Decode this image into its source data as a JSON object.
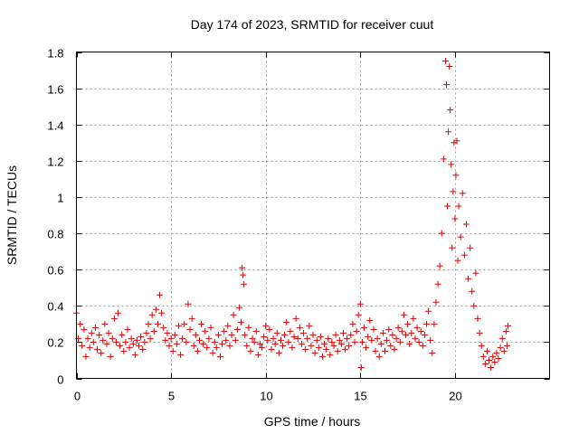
{
  "chart_data": {
    "type": "scatter",
    "title": "Day 174 of 2023, SRMTID for receiver cuut",
    "xlabel": "GPS time / hours",
    "ylabel": "SRMTID / TECUs",
    "xlim": [
      0,
      25
    ],
    "ylim": [
      0,
      1.8
    ],
    "xticks": [
      0,
      5,
      10,
      15,
      20
    ],
    "xtick_labels": [
      "0",
      "5",
      "10",
      "15",
      "20"
    ],
    "yticks": [
      0,
      0.2,
      0.4,
      0.6,
      0.8,
      1,
      1.2,
      1.4,
      1.6,
      1.8
    ],
    "ytick_labels": [
      "0",
      "0.2",
      "0.4",
      "0.6",
      "0.8",
      "1",
      "1.2",
      "1.4",
      "1.6",
      "1.8"
    ],
    "grid": true,
    "marker": "+",
    "series": [
      {
        "name": "SRMTID",
        "color": "#e00000",
        "points": [
          [
            0.0,
            0.36
          ],
          [
            0.1,
            0.22
          ],
          [
            0.2,
            0.3
          ],
          [
            0.3,
            0.18
          ],
          [
            0.4,
            0.27
          ],
          [
            0.5,
            0.12
          ],
          [
            0.6,
            0.22
          ],
          [
            0.7,
            0.17
          ],
          [
            0.8,
            0.25
          ],
          [
            0.9,
            0.2
          ],
          [
            1.0,
            0.28
          ],
          [
            1.1,
            0.16
          ],
          [
            1.2,
            0.24
          ],
          [
            1.3,
            0.14
          ],
          [
            1.4,
            0.21
          ],
          [
            1.5,
            0.3
          ],
          [
            1.6,
            0.19
          ],
          [
            1.7,
            0.25
          ],
          [
            1.8,
            0.12
          ],
          [
            1.9,
            0.22
          ],
          [
            2.0,
            0.33
          ],
          [
            2.1,
            0.2
          ],
          [
            2.2,
            0.36
          ],
          [
            2.3,
            0.18
          ],
          [
            2.4,
            0.24
          ],
          [
            2.5,
            0.15
          ],
          [
            2.6,
            0.2
          ],
          [
            2.7,
            0.27
          ],
          [
            2.8,
            0.17
          ],
          [
            2.9,
            0.22
          ],
          [
            3.0,
            0.19
          ],
          [
            3.1,
            0.13
          ],
          [
            3.2,
            0.21
          ],
          [
            3.3,
            0.18
          ],
          [
            3.4,
            0.23
          ],
          [
            3.5,
            0.16
          ],
          [
            3.6,
            0.2
          ],
          [
            3.7,
            0.25
          ],
          [
            3.8,
            0.3
          ],
          [
            3.9,
            0.22
          ],
          [
            4.0,
            0.35
          ],
          [
            4.1,
            0.26
          ],
          [
            4.2,
            0.38
          ],
          [
            4.3,
            0.3
          ],
          [
            4.4,
            0.46
          ],
          [
            4.5,
            0.36
          ],
          [
            4.6,
            0.28
          ],
          [
            4.7,
            0.21
          ],
          [
            4.8,
            0.25
          ],
          [
            4.9,
            0.18
          ],
          [
            5.0,
            0.22
          ],
          [
            5.1,
            0.15
          ],
          [
            5.2,
            0.24
          ],
          [
            5.3,
            0.19
          ],
          [
            5.4,
            0.29
          ],
          [
            5.5,
            0.13
          ],
          [
            5.6,
            0.22
          ],
          [
            5.7,
            0.3
          ],
          [
            5.8,
            0.2
          ],
          [
            5.9,
            0.41
          ],
          [
            6.0,
            0.27
          ],
          [
            6.1,
            0.33
          ],
          [
            6.2,
            0.18
          ],
          [
            6.3,
            0.24
          ],
          [
            6.4,
            0.15
          ],
          [
            6.5,
            0.21
          ],
          [
            6.6,
            0.3
          ],
          [
            6.7,
            0.19
          ],
          [
            6.8,
            0.26
          ],
          [
            6.9,
            0.17
          ],
          [
            7.0,
            0.22
          ],
          [
            7.1,
            0.28
          ],
          [
            7.2,
            0.14
          ],
          [
            7.3,
            0.2
          ],
          [
            7.4,
            0.17
          ],
          [
            7.5,
            0.24
          ],
          [
            7.6,
            0.12
          ],
          [
            7.7,
            0.19
          ],
          [
            7.8,
            0.26
          ],
          [
            7.9,
            0.21
          ],
          [
            8.0,
            0.29
          ],
          [
            8.1,
            0.18
          ],
          [
            8.2,
            0.24
          ],
          [
            8.3,
            0.35
          ],
          [
            8.4,
            0.21
          ],
          [
            8.5,
            0.27
          ],
          [
            8.6,
            0.39
          ],
          [
            8.7,
            0.31
          ],
          [
            8.75,
            0.61
          ],
          [
            8.8,
            0.57
          ],
          [
            8.85,
            0.52
          ],
          [
            8.9,
            0.24
          ],
          [
            9.0,
            0.18
          ],
          [
            9.1,
            0.28
          ],
          [
            9.2,
            0.15
          ],
          [
            9.3,
            0.22
          ],
          [
            9.4,
            0.2
          ],
          [
            9.5,
            0.26
          ],
          [
            9.6,
            0.13
          ],
          [
            9.7,
            0.19
          ],
          [
            9.8,
            0.17
          ],
          [
            9.9,
            0.23
          ],
          [
            10.0,
            0.29
          ],
          [
            10.1,
            0.21
          ],
          [
            10.2,
            0.27
          ],
          [
            10.3,
            0.16
          ],
          [
            10.4,
            0.22
          ],
          [
            10.5,
            0.19
          ],
          [
            10.6,
            0.25
          ],
          [
            10.7,
            0.14
          ],
          [
            10.8,
            0.21
          ],
          [
            10.9,
            0.18
          ],
          [
            11.0,
            0.24
          ],
          [
            11.1,
            0.31
          ],
          [
            11.2,
            0.2
          ],
          [
            11.3,
            0.26
          ],
          [
            11.4,
            0.17
          ],
          [
            11.5,
            0.23
          ],
          [
            11.6,
            0.33
          ],
          [
            11.7,
            0.22
          ],
          [
            11.8,
            0.28
          ],
          [
            11.9,
            0.19
          ],
          [
            12.0,
            0.25
          ],
          [
            12.1,
            0.16
          ],
          [
            12.2,
            0.22
          ],
          [
            12.3,
            0.29
          ],
          [
            12.4,
            0.18
          ],
          [
            12.5,
            0.24
          ],
          [
            12.6,
            0.14
          ],
          [
            12.7,
            0.21
          ],
          [
            12.8,
            0.17
          ],
          [
            12.9,
            0.23
          ],
          [
            13.0,
            0.12
          ],
          [
            13.1,
            0.19
          ],
          [
            13.2,
            0.16
          ],
          [
            13.3,
            0.22
          ],
          [
            13.4,
            0.13
          ],
          [
            13.5,
            0.2
          ],
          [
            13.6,
            0.18
          ],
          [
            13.7,
            0.24
          ],
          [
            13.8,
            0.15
          ],
          [
            13.9,
            0.21
          ],
          [
            14.0,
            0.19
          ],
          [
            14.1,
            0.25
          ],
          [
            14.2,
            0.16
          ],
          [
            14.3,
            0.22
          ],
          [
            14.4,
            0.18
          ],
          [
            14.5,
            0.24
          ],
          [
            14.6,
            0.3
          ],
          [
            14.7,
            0.2
          ],
          [
            14.8,
            0.26
          ],
          [
            14.9,
            0.35
          ],
          [
            15.0,
            0.41
          ],
          [
            15.05,
            0.06
          ],
          [
            15.1,
            0.2
          ],
          [
            15.2,
            0.28
          ],
          [
            15.3,
            0.17
          ],
          [
            15.4,
            0.23
          ],
          [
            15.5,
            0.32
          ],
          [
            15.6,
            0.21
          ],
          [
            15.7,
            0.27
          ],
          [
            15.8,
            0.15
          ],
          [
            15.9,
            0.22
          ],
          [
            16.0,
            0.12
          ],
          [
            16.1,
            0.19
          ],
          [
            16.2,
            0.25
          ],
          [
            16.3,
            0.15
          ],
          [
            16.4,
            0.21
          ],
          [
            16.5,
            0.27
          ],
          [
            16.6,
            0.18
          ],
          [
            16.7,
            0.24
          ],
          [
            16.8,
            0.16
          ],
          [
            16.9,
            0.22
          ],
          [
            17.0,
            0.28
          ],
          [
            17.1,
            0.2
          ],
          [
            17.2,
            0.26
          ],
          [
            17.3,
            0.35
          ],
          [
            17.4,
            0.24
          ],
          [
            17.5,
            0.3
          ],
          [
            17.6,
            0.19
          ],
          [
            17.7,
            0.25
          ],
          [
            17.8,
            0.33
          ],
          [
            17.9,
            0.22
          ],
          [
            18.0,
            0.28
          ],
          [
            18.1,
            0.2
          ],
          [
            18.2,
            0.26
          ],
          [
            18.3,
            0.18
          ],
          [
            18.4,
            0.24
          ],
          [
            18.5,
            0.3
          ],
          [
            18.6,
            0.37
          ],
          [
            18.7,
            0.21
          ],
          [
            18.8,
            0.14
          ],
          [
            18.9,
            0.3
          ],
          [
            19.0,
            0.42
          ],
          [
            19.1,
            0.52
          ],
          [
            19.2,
            0.62
          ],
          [
            19.3,
            0.8
          ],
          [
            19.4,
            1.21
          ],
          [
            19.5,
            1.75
          ],
          [
            19.55,
            1.62
          ],
          [
            19.6,
            0.95
          ],
          [
            19.65,
            1.36
          ],
          [
            19.7,
            1.72
          ],
          [
            19.75,
            1.48
          ],
          [
            19.8,
            1.18
          ],
          [
            19.85,
            0.72
          ],
          [
            19.9,
            1.03
          ],
          [
            19.95,
            1.3
          ],
          [
            20.0,
            0.88
          ],
          [
            20.05,
            1.12
          ],
          [
            20.1,
            1.31
          ],
          [
            20.15,
            0.65
          ],
          [
            20.2,
            0.95
          ],
          [
            20.3,
            0.78
          ],
          [
            20.4,
            1.02
          ],
          [
            20.5,
            0.68
          ],
          [
            20.6,
            0.85
          ],
          [
            20.7,
            0.55
          ],
          [
            20.8,
            0.72
          ],
          [
            20.9,
            0.48
          ],
          [
            21.0,
            0.4
          ],
          [
            21.1,
            0.58
          ],
          [
            21.2,
            0.33
          ],
          [
            21.3,
            0.25
          ],
          [
            21.4,
            0.18
          ],
          [
            21.5,
            0.12
          ],
          [
            21.6,
            0.08
          ],
          [
            21.7,
            0.15
          ],
          [
            21.8,
            0.1
          ],
          [
            21.9,
            0.06
          ],
          [
            22.0,
            0.12
          ],
          [
            22.1,
            0.09
          ],
          [
            22.2,
            0.14
          ],
          [
            22.3,
            0.11
          ],
          [
            22.4,
            0.17
          ],
          [
            22.5,
            0.22
          ],
          [
            22.6,
            0.15
          ],
          [
            22.7,
            0.26
          ],
          [
            22.75,
            0.18
          ],
          [
            22.8,
            0.29
          ]
        ]
      }
    ]
  }
}
